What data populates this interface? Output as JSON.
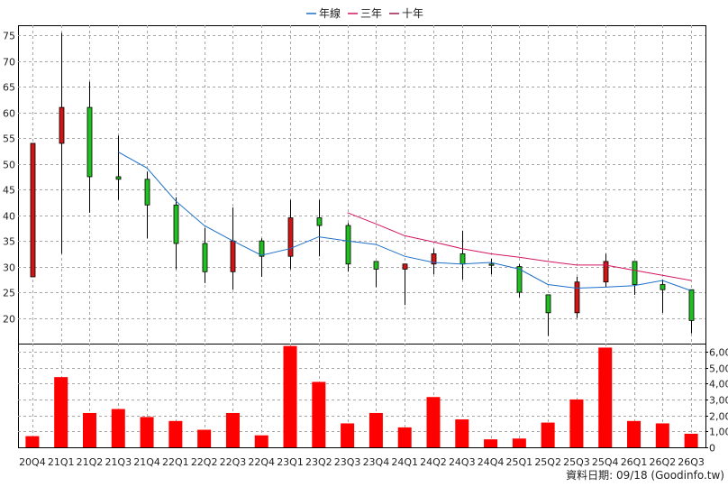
{
  "legend": [
    {
      "label": "年線",
      "color": "#1c6fc6"
    },
    {
      "label": "三年",
      "color": "#d21560"
    },
    {
      "label": "十年",
      "color": "#9b1a4f"
    }
  ],
  "footnote": "資料日期: 09/18  (Goodinfo.tw)",
  "chart_data": [
    {
      "type": "candlestick",
      "ylim": [
        15,
        77
      ],
      "yticks": [
        20,
        25,
        30,
        35,
        40,
        45,
        50,
        55,
        60,
        65,
        70,
        75
      ],
      "grid": true,
      "categories": [
        "20Q4",
        "21Q1",
        "21Q2",
        "21Q3",
        "21Q4",
        "22Q1",
        "22Q2",
        "22Q3",
        "22Q4",
        "23Q1",
        "23Q2",
        "23Q3",
        "23Q4",
        "24Q1",
        "24Q2",
        "24Q3",
        "24Q4",
        "25Q1",
        "25Q2",
        "25Q3",
        "25Q4",
        "26Q1",
        "26Q2",
        "26Q3"
      ],
      "ohlc": [
        {
          "o": 28.0,
          "h": 54.0,
          "l": 28.0,
          "c": 54.0,
          "dir": "up"
        },
        {
          "o": 54.0,
          "h": 75.5,
          "l": 32.5,
          "c": 61.0,
          "dir": "up"
        },
        {
          "o": 61.0,
          "h": 66.0,
          "l": 40.5,
          "c": 47.5,
          "dir": "down"
        },
        {
          "o": 47.5,
          "h": 55.5,
          "l": 43.0,
          "c": 47.0,
          "dir": "down"
        },
        {
          "o": 47.0,
          "h": 48.5,
          "l": 35.5,
          "c": 42.0,
          "dir": "down"
        },
        {
          "o": 42.0,
          "h": 43.5,
          "l": 29.5,
          "c": 34.5,
          "dir": "down"
        },
        {
          "o": 34.5,
          "h": 37.5,
          "l": 26.8,
          "c": 29.0,
          "dir": "down"
        },
        {
          "o": 29.0,
          "h": 41.5,
          "l": 25.5,
          "c": 35.0,
          "dir": "up"
        },
        {
          "o": 35.0,
          "h": 35.5,
          "l": 28.0,
          "c": 32.0,
          "dir": "down"
        },
        {
          "o": 32.0,
          "h": 43.0,
          "l": 29.5,
          "c": 39.5,
          "dir": "up"
        },
        {
          "o": 39.5,
          "h": 43.0,
          "l": 32.0,
          "c": 38.0,
          "dir": "down"
        },
        {
          "o": 38.0,
          "h": 38.5,
          "l": 29.0,
          "c": 30.5,
          "dir": "down"
        },
        {
          "o": 31.0,
          "h": 31.0,
          "l": 26.0,
          "c": 29.5,
          "dir": "down"
        },
        {
          "o": 29.5,
          "h": 30.5,
          "l": 22.5,
          "c": 30.5,
          "dir": "up"
        },
        {
          "o": 30.5,
          "h": 33.5,
          "l": 28.5,
          "c": 32.5,
          "dir": "up"
        },
        {
          "o": 32.5,
          "h": 37.0,
          "l": 27.5,
          "c": 30.5,
          "dir": "down"
        },
        {
          "o": 30.5,
          "h": 31.5,
          "l": 28.5,
          "c": 30.5,
          "dir": "down"
        },
        {
          "o": 30.0,
          "h": 30.5,
          "l": 24.0,
          "c": 25.0,
          "dir": "down"
        },
        {
          "o": 24.5,
          "h": 24.5,
          "l": 16.5,
          "c": 21.0,
          "dir": "down"
        },
        {
          "o": 21.0,
          "h": 28.0,
          "l": 20.0,
          "c": 27.0,
          "dir": "up"
        },
        {
          "o": 27.0,
          "h": 32.5,
          "l": 26.0,
          "c": 31.0,
          "dir": "up"
        },
        {
          "o": 31.0,
          "h": 31.0,
          "l": 24.5,
          "c": 26.5,
          "dir": "down"
        },
        {
          "o": 26.5,
          "h": 27.5,
          "l": 21.0,
          "c": 25.5,
          "dir": "down"
        },
        {
          "o": 25.5,
          "h": 25.5,
          "l": 17.0,
          "c": 19.5,
          "dir": "down"
        }
      ],
      "series": [
        {
          "name": "年線",
          "values": [
            null,
            null,
            null,
            52.3,
            49.2,
            42.8,
            38.0,
            35.0,
            32.2,
            33.5,
            35.8,
            35.0,
            34.3,
            32.0,
            30.8,
            30.5,
            30.8,
            29.5,
            26.5,
            25.8,
            26.0,
            26.3,
            27.3,
            25.3
          ]
        },
        {
          "name": "三年",
          "values": [
            null,
            null,
            null,
            null,
            null,
            null,
            null,
            null,
            null,
            null,
            null,
            40.5,
            38.3,
            36.0,
            34.8,
            33.5,
            32.5,
            31.8,
            31.0,
            30.3,
            30.3,
            29.3,
            28.3,
            27.3
          ]
        }
      ]
    },
    {
      "type": "bar",
      "ylim": [
        0,
        6500
      ],
      "yticks": [
        0,
        1000,
        2000,
        3000,
        4000,
        5000,
        6000
      ],
      "yticklabels": [
        "0",
        "1,000",
        "2,000",
        "3,000",
        "4,000",
        "5,000",
        "6,000"
      ],
      "categories": [
        "20Q4",
        "21Q1",
        "21Q2",
        "21Q3",
        "21Q4",
        "22Q1",
        "22Q2",
        "22Q3",
        "22Q4",
        "23Q1",
        "23Q2",
        "23Q3",
        "23Q4",
        "24Q1",
        "24Q2",
        "24Q3",
        "24Q4",
        "25Q1",
        "25Q2",
        "25Q3",
        "25Q4",
        "26Q1",
        "26Q2",
        "26Q3"
      ],
      "values": [
        700,
        4400,
        2150,
        2400,
        1900,
        1650,
        1100,
        2150,
        750,
        6350,
        4100,
        1500,
        2150,
        1250,
        3150,
        1750,
        500,
        550,
        1550,
        3000,
        6250,
        1650,
        1500,
        850
      ]
    }
  ],
  "colors": {
    "up": "#d01515",
    "down": "#21c021",
    "volume": "#ff0000",
    "grid": "#a6a6a6"
  }
}
